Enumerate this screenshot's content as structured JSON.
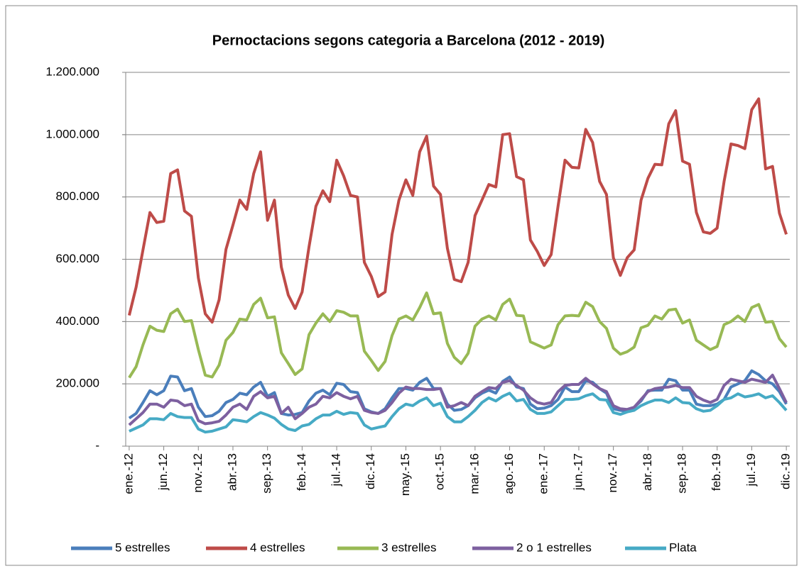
{
  "chart_data": {
    "type": "line",
    "title": "Pernoctacions segons categoria a Barcelona (2012 - 2019)",
    "categories": [
      "ene.-12",
      null,
      null,
      null,
      null,
      "jun.-12",
      null,
      null,
      null,
      null,
      "nov.-12",
      null,
      null,
      null,
      null,
      "abr.-13",
      null,
      null,
      null,
      null,
      "sep.-13",
      null,
      null,
      null,
      null,
      "feb.-14",
      null,
      null,
      null,
      null,
      "jul.-14",
      null,
      null,
      null,
      null,
      "dic.-14",
      null,
      null,
      null,
      null,
      "may.-15",
      null,
      null,
      null,
      null,
      "oct.-15",
      null,
      null,
      null,
      null,
      "mar.-16",
      null,
      null,
      null,
      null,
      "ago.-16",
      null,
      null,
      null,
      null,
      "ene.-17",
      null,
      null,
      null,
      null,
      "jun.-17",
      null,
      null,
      null,
      null,
      "nov.-17",
      null,
      null,
      null,
      null,
      "abr.-18",
      null,
      null,
      null,
      null,
      "sep.-18",
      null,
      null,
      null,
      null,
      "feb.-19",
      null,
      null,
      null,
      null,
      "jul.-19",
      null,
      null,
      null,
      null,
      "dic.-19"
    ],
    "series": [
      {
        "name": "5 estrelles",
        "color": "#4a7ebb",
        "values": [
          90000,
          105000,
          140000,
          178000,
          165000,
          178000,
          225000,
          222000,
          178000,
          185000,
          125000,
          95000,
          98000,
          112000,
          140000,
          150000,
          170000,
          165000,
          190000,
          205000,
          160000,
          172000,
          105000,
          100000,
          102000,
          108000,
          145000,
          170000,
          180000,
          165000,
          202000,
          198000,
          175000,
          172000,
          120000,
          110000,
          105000,
          120000,
          155000,
          185000,
          185000,
          180000,
          205000,
          218000,
          185000,
          185000,
          135000,
          115000,
          118000,
          130000,
          155000,
          170000,
          180000,
          170000,
          208000,
          222000,
          190000,
          185000,
          135000,
          120000,
          122000,
          130000,
          150000,
          190000,
          175000,
          175000,
          210000,
          205000,
          185000,
          170000,
          120000,
          115000,
          112000,
          125000,
          145000,
          178000,
          180000,
          180000,
          215000,
          210000,
          180000,
          180000,
          135000,
          130000,
          130000,
          135000,
          150000,
          190000,
          200000,
          210000,
          242000,
          230000,
          210000,
          200000,
          175000,
          135000
        ]
      },
      {
        "name": "4 estrelles",
        "color": "#be4b48",
        "values": [
          420000,
          510000,
          630000,
          750000,
          718000,
          722000,
          875000,
          887000,
          755000,
          738000,
          540000,
          425000,
          398000,
          470000,
          632000,
          710000,
          790000,
          760000,
          875000,
          945000,
          725000,
          790000,
          575000,
          485000,
          442000,
          495000,
          640000,
          770000,
          820000,
          785000,
          918000,
          868000,
          805000,
          800000,
          590000,
          545000,
          480000,
          495000,
          680000,
          790000,
          855000,
          805000,
          945000,
          995000,
          835000,
          808000,
          635000,
          535000,
          528000,
          590000,
          740000,
          790000,
          840000,
          832000,
          1000000,
          1003000,
          865000,
          855000,
          662000,
          625000,
          580000,
          615000,
          770000,
          918000,
          895000,
          893000,
          1017000,
          975000,
          850000,
          808000,
          605000,
          548000,
          605000,
          630000,
          790000,
          860000,
          905000,
          903000,
          1035000,
          1077000,
          915000,
          905000,
          750000,
          688000,
          683000,
          700000,
          850000,
          970000,
          965000,
          955000,
          1080000,
          1115000,
          890000,
          898000,
          748000,
          680000
        ]
      },
      {
        "name": "3 estrelles",
        "color": "#98b954",
        "values": [
          220000,
          255000,
          325000,
          385000,
          372000,
          368000,
          425000,
          440000,
          400000,
          403000,
          310000,
          228000,
          222000,
          260000,
          340000,
          365000,
          408000,
          405000,
          455000,
          475000,
          412000,
          415000,
          300000,
          265000,
          230000,
          248000,
          358000,
          395000,
          425000,
          400000,
          435000,
          430000,
          418000,
          418000,
          305000,
          275000,
          243000,
          272000,
          355000,
          408000,
          418000,
          405000,
          445000,
          492000,
          425000,
          428000,
          330000,
          285000,
          265000,
          298000,
          385000,
          408000,
          418000,
          405000,
          455000,
          472000,
          420000,
          418000,
          335000,
          325000,
          315000,
          325000,
          390000,
          418000,
          420000,
          418000,
          462000,
          448000,
          400000,
          378000,
          315000,
          295000,
          303000,
          318000,
          380000,
          388000,
          418000,
          408000,
          437000,
          440000,
          395000,
          405000,
          340000,
          325000,
          310000,
          320000,
          390000,
          400000,
          418000,
          400000,
          445000,
          455000,
          398000,
          400000,
          345000,
          318000
        ]
      },
      {
        "name": "2 o 1 estrelles",
        "color": "#7d60a0",
        "values": [
          68000,
          88000,
          108000,
          135000,
          135000,
          125000,
          148000,
          145000,
          130000,
          135000,
          82000,
          72000,
          75000,
          80000,
          100000,
          125000,
          135000,
          118000,
          160000,
          175000,
          155000,
          160000,
          105000,
          125000,
          88000,
          105000,
          125000,
          135000,
          160000,
          155000,
          172000,
          160000,
          152000,
          160000,
          115000,
          108000,
          105000,
          115000,
          140000,
          170000,
          190000,
          185000,
          185000,
          182000,
          182000,
          185000,
          125000,
          130000,
          140000,
          130000,
          160000,
          175000,
          188000,
          185000,
          205000,
          210000,
          195000,
          180000,
          155000,
          140000,
          135000,
          140000,
          175000,
          195000,
          198000,
          198000,
          218000,
          200000,
          185000,
          175000,
          130000,
          120000,
          118000,
          125000,
          150000,
          175000,
          185000,
          188000,
          190000,
          195000,
          188000,
          188000,
          160000,
          148000,
          140000,
          150000,
          195000,
          215000,
          210000,
          205000,
          215000,
          210000,
          205000,
          228000,
          185000,
          140000
        ]
      },
      {
        "name": "Plata",
        "color": "#46aac5",
        "values": [
          48000,
          58000,
          68000,
          88000,
          88000,
          85000,
          105000,
          95000,
          92000,
          92000,
          55000,
          45000,
          48000,
          55000,
          62000,
          85000,
          82000,
          78000,
          95000,
          108000,
          100000,
          90000,
          70000,
          55000,
          50000,
          65000,
          70000,
          88000,
          100000,
          100000,
          112000,
          102000,
          108000,
          105000,
          68000,
          55000,
          60000,
          65000,
          95000,
          120000,
          135000,
          130000,
          145000,
          155000,
          130000,
          138000,
          95000,
          78000,
          78000,
          95000,
          115000,
          140000,
          155000,
          145000,
          160000,
          170000,
          145000,
          150000,
          118000,
          105000,
          105000,
          110000,
          130000,
          150000,
          150000,
          152000,
          162000,
          168000,
          150000,
          148000,
          108000,
          102000,
          110000,
          115000,
          130000,
          140000,
          148000,
          148000,
          140000,
          155000,
          140000,
          138000,
          120000,
          112000,
          115000,
          130000,
          150000,
          155000,
          168000,
          158000,
          162000,
          168000,
          155000,
          162000,
          140000,
          115000
        ]
      }
    ],
    "ylim": [
      0,
      1200000
    ],
    "yticks": [
      {
        "value": 0,
        "label": "-"
      },
      {
        "value": 200000,
        "label": "200.000"
      },
      {
        "value": 400000,
        "label": "400.000"
      },
      {
        "value": 600000,
        "label": "600.000"
      },
      {
        "value": 800000,
        "label": "800.000"
      },
      {
        "value": 1000000,
        "label": "1.000.000"
      },
      {
        "value": 1200000,
        "label": "1.200.000"
      }
    ],
    "grid": true,
    "legend": "bottom"
  }
}
